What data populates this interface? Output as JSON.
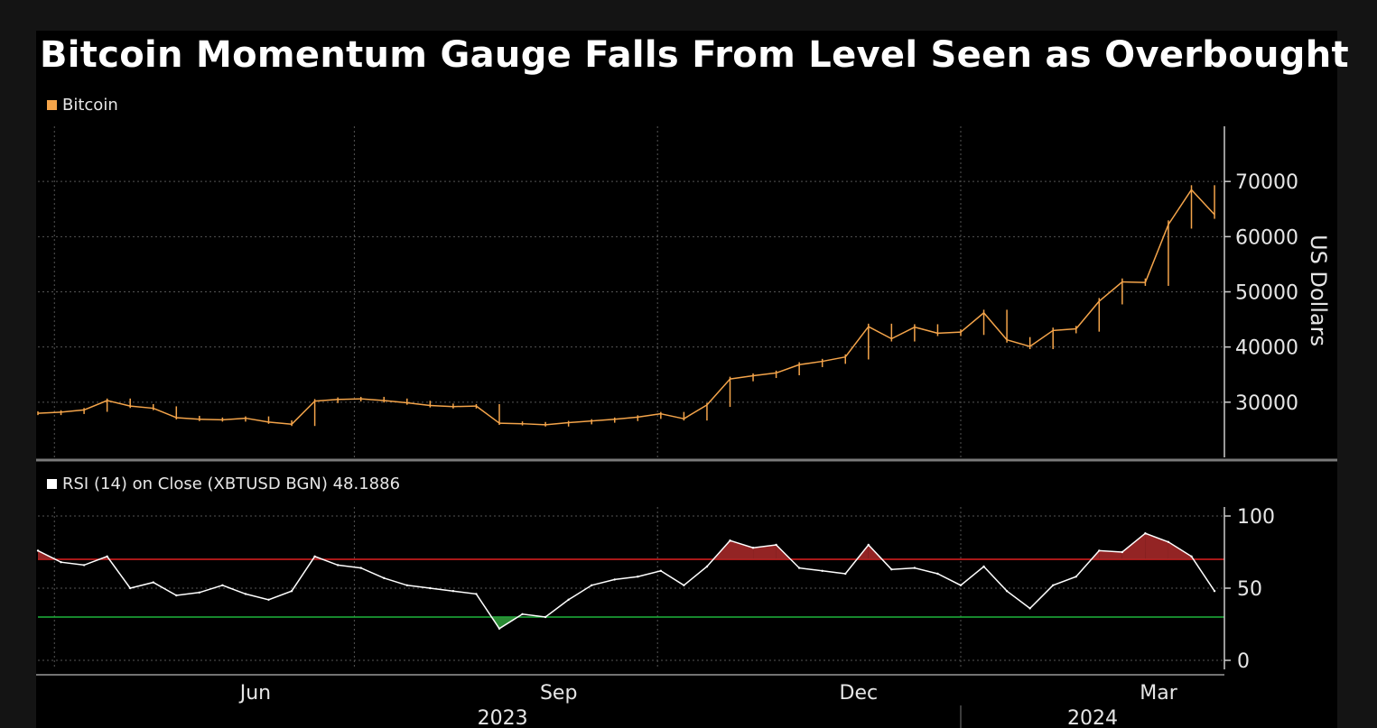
{
  "title": "Bitcoin Momentum Gauge Falls From Level Seen as Overbought",
  "colors": {
    "background": "#000000",
    "price": "#f4a44a",
    "rsi": "#ffffff",
    "overbought_line": "#e02020",
    "oversold_line": "#1fb43c",
    "overbought_fill": "#a32828",
    "oversold_fill": "#2f9a3a",
    "grid": "#555555"
  },
  "chart_data": [
    {
      "type": "line",
      "subtype": "ohlc",
      "legend": "Bitcoin",
      "legend_position": "top-left",
      "ylabel": "US Dollars",
      "ylim": [
        20000,
        80000
      ],
      "yticks": [
        30000,
        40000,
        50000,
        60000,
        70000
      ],
      "xlim": [
        "2023-03-27",
        "2024-03-21"
      ],
      "grid": true,
      "x": [
        "2023-03-27",
        "2023-04-03",
        "2023-04-10",
        "2023-04-17",
        "2023-04-24",
        "2023-05-01",
        "2023-05-08",
        "2023-05-15",
        "2023-05-22",
        "2023-05-29",
        "2023-06-05",
        "2023-06-12",
        "2023-06-19",
        "2023-06-26",
        "2023-07-03",
        "2023-07-10",
        "2023-07-17",
        "2023-07-24",
        "2023-07-31",
        "2023-08-07",
        "2023-08-14",
        "2023-08-21",
        "2023-08-28",
        "2023-09-04",
        "2023-09-11",
        "2023-09-18",
        "2023-09-25",
        "2023-10-02",
        "2023-10-09",
        "2023-10-16",
        "2023-10-23",
        "2023-10-30",
        "2023-11-06",
        "2023-11-13",
        "2023-11-20",
        "2023-11-27",
        "2023-12-04",
        "2023-12-11",
        "2023-12-18",
        "2023-12-25",
        "2024-01-01",
        "2024-01-08",
        "2024-01-15",
        "2024-01-22",
        "2024-01-29",
        "2024-02-05",
        "2024-02-12",
        "2024-02-19",
        "2024-02-26",
        "2024-03-04",
        "2024-03-11",
        "2024-03-18"
      ],
      "values": [
        28000,
        28200,
        28600,
        30300,
        29300,
        28900,
        27200,
        26900,
        26800,
        27100,
        26400,
        26000,
        30200,
        30500,
        30600,
        30300,
        29900,
        29400,
        29200,
        29300,
        26200,
        26100,
        25900,
        26300,
        26600,
        26900,
        27300,
        27900,
        27000,
        29500,
        34200,
        34800,
        35300,
        36800,
        37400,
        38200,
        43700,
        41500,
        43600,
        42500,
        42700,
        46200,
        41300,
        40100,
        43000,
        43300,
        48300,
        51800,
        51700,
        62200,
        68500,
        64000
      ],
      "values_note_hidden": ""
    },
    {
      "type": "line",
      "legend": "RSI (14)  on Close (XBTUSD BGN) 48.1886",
      "ylim": [
        0,
        100
      ],
      "yticks": [
        0,
        50,
        100
      ],
      "reference_lines": [
        70,
        30
      ],
      "xlim": [
        "2023-03-27",
        "2024-03-21"
      ],
      "x_ticks": [
        "Jun",
        "Sep",
        "Dec",
        "Mar"
      ],
      "x_years": [
        "2023",
        "2024"
      ],
      "grid": true,
      "x": [
        "2023-03-27",
        "2023-04-03",
        "2023-04-10",
        "2023-04-17",
        "2023-04-24",
        "2023-05-01",
        "2023-05-08",
        "2023-05-15",
        "2023-05-22",
        "2023-05-29",
        "2023-06-05",
        "2023-06-12",
        "2023-06-19",
        "2023-06-26",
        "2023-07-03",
        "2023-07-10",
        "2023-07-17",
        "2023-07-24",
        "2023-07-31",
        "2023-08-07",
        "2023-08-14",
        "2023-08-21",
        "2023-08-28",
        "2023-09-04",
        "2023-09-11",
        "2023-09-18",
        "2023-09-25",
        "2023-10-02",
        "2023-10-09",
        "2023-10-16",
        "2023-10-23",
        "2023-10-30",
        "2023-11-06",
        "2023-11-13",
        "2023-11-20",
        "2023-11-27",
        "2023-12-04",
        "2023-12-11",
        "2023-12-18",
        "2023-12-25",
        "2024-01-01",
        "2024-01-08",
        "2024-01-15",
        "2024-01-22",
        "2024-01-29",
        "2024-02-05",
        "2024-02-12",
        "2024-02-19",
        "2024-02-26",
        "2024-03-04",
        "2024-03-11",
        "2024-03-18"
      ],
      "values": [
        76,
        68,
        66,
        72,
        50,
        54,
        45,
        47,
        52,
        46,
        42,
        48,
        72,
        66,
        64,
        57,
        52,
        50,
        48,
        46,
        22,
        32,
        30,
        42,
        52,
        56,
        58,
        62,
        52,
        65,
        83,
        78,
        80,
        64,
        62,
        60,
        80,
        63,
        64,
        60,
        52,
        65,
        48,
        36,
        52,
        58,
        76,
        75,
        88,
        82,
        72,
        48
      ]
    }
  ]
}
